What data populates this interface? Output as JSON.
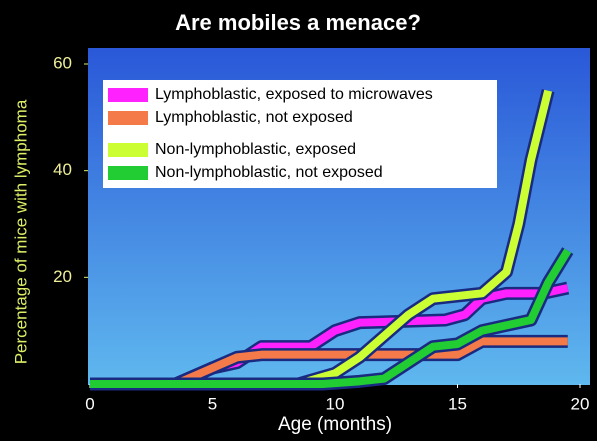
{
  "chart_data": {
    "type": "line",
    "title": "Are mobiles a menace?",
    "x_label": "Age (months)",
    "y_label": "Percentage of mice with lymphoma",
    "xlim": [
      0,
      20
    ],
    "ylim": [
      0,
      63
    ],
    "xticks": [
      0,
      5,
      10,
      15,
      20
    ],
    "yticks": [
      20,
      40,
      60
    ],
    "legend": "top-left",
    "series": [
      {
        "name": "Lymphoblastic, exposed to microwaves",
        "color": "#ff22ff",
        "x": [
          0,
          3.5,
          5,
          6,
          7,
          9,
          10,
          11,
          14.5,
          15.3,
          16,
          17,
          18.5,
          19.5
        ],
        "values": [
          0,
          0,
          3,
          4,
          7,
          7,
          10,
          11.5,
          12,
          13,
          16,
          17,
          17,
          18
        ]
      },
      {
        "name": "Lymphoblastic, not exposed",
        "color": "#f47a4a",
        "x": [
          0,
          3.5,
          5,
          6,
          7,
          15,
          16,
          19.5
        ],
        "values": [
          0,
          0,
          3,
          5,
          5.5,
          5.5,
          8,
          8
        ]
      },
      {
        "name": "Non-lymphoblastic, exposed",
        "color": "#ccff33",
        "x": [
          0,
          8.5,
          10,
          11,
          12,
          13,
          14,
          16,
          17,
          17.5,
          18,
          18.7
        ],
        "values": [
          0,
          0,
          2,
          5,
          9,
          13,
          16,
          17,
          21,
          30,
          42,
          55
        ]
      },
      {
        "name": "Non-lymphoblastic, not exposed",
        "color": "#22cc33",
        "x": [
          0,
          9.5,
          11,
          12,
          13,
          14,
          15,
          16,
          17,
          18,
          18.7,
          19.5
        ],
        "values": [
          0,
          0,
          0.5,
          1,
          4,
          7,
          7.5,
          10,
          11,
          12,
          19,
          25
        ]
      }
    ]
  }
}
